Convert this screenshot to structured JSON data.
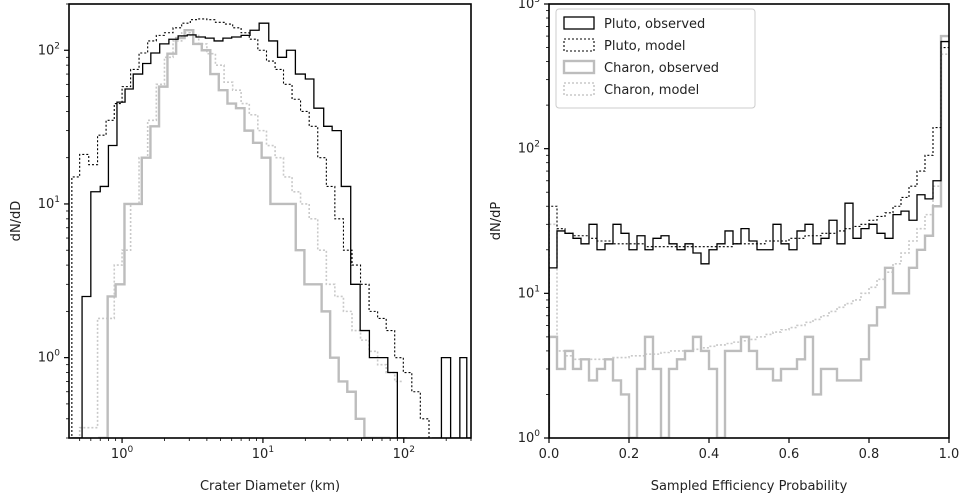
{
  "chart_data": [
    {
      "type": "line",
      "step": true,
      "xscale": "log",
      "yscale": "log",
      "xlim": [
        0.42,
        300
      ],
      "ylim": [
        0.3,
        200
      ],
      "xlabel": "Crater Diameter (km)",
      "ylabel": "dN/dD",
      "xticks": [
        {
          "value": 1,
          "base": "10",
          "exp": "0"
        },
        {
          "value": 10,
          "base": "10",
          "exp": "1"
        },
        {
          "value": 100,
          "base": "10",
          "exp": "2"
        }
      ],
      "yticks": [
        {
          "value": 1,
          "base": "10",
          "exp": "0"
        },
        {
          "value": 10,
          "base": "10",
          "exp": "1"
        },
        {
          "value": 100,
          "base": "10",
          "exp": "2"
        }
      ],
      "series": [
        {
          "key": "pluto_obs",
          "color": "#000000",
          "width": 1.3,
          "dash": "",
          "x": [
            0.44,
            0.52,
            0.6,
            0.7,
            0.8,
            0.92,
            1.05,
            1.2,
            1.4,
            1.6,
            1.85,
            2.15,
            2.5,
            2.9,
            3.35,
            3.9,
            4.5,
            5.2,
            6.0,
            7.0,
            8.1,
            9.4,
            11,
            12.7,
            14.7,
            17,
            20,
            23,
            27,
            31,
            36,
            42,
            49,
            57,
            66,
            77,
            90
          ],
          "y": [
            0.3,
            2.5,
            12,
            13,
            24,
            46,
            56,
            70,
            82,
            96,
            110,
            118,
            124,
            126,
            122,
            120,
            115,
            120,
            122,
            125,
            135,
            150,
            115,
            90,
            100,
            70,
            65,
            42,
            32,
            30,
            13,
            3,
            1.5,
            1,
            1,
            0.8,
            0.3
          ]
        },
        {
          "key": "pluto_obs_tail",
          "color": "#000000",
          "width": 1.3,
          "dash": "",
          "x": [
            160,
            185,
            215,
            250,
            280
          ],
          "y": [
            0.3,
            1,
            0.3,
            1,
            0.3
          ]
        },
        {
          "key": "pluto_model",
          "color": "#000000",
          "width": 1.1,
          "dash": "2,2",
          "x": [
            0.44,
            0.5,
            0.58,
            0.67,
            0.77,
            0.88,
            1.0,
            1.15,
            1.32,
            1.52,
            1.75,
            2.0,
            2.3,
            2.65,
            3.05,
            3.5,
            4.0,
            4.6,
            5.3,
            6.1,
            7.0,
            8.0,
            9.2,
            10.6,
            12.2,
            14.0,
            16.1,
            18.5,
            21.3,
            24.5,
            28.2,
            32.4,
            37.3,
            42.9,
            49.3,
            56.7,
            65.2,
            75,
            86.2,
            99.2,
            114,
            131,
            151,
            173,
            200,
            230,
            265
          ],
          "y": [
            15,
            21,
            18,
            28,
            35,
            45,
            58,
            75,
            96,
            115,
            125,
            130,
            140,
            150,
            158,
            160,
            158,
            152,
            148,
            140,
            130,
            118,
            100,
            85,
            75,
            60,
            48,
            40,
            32,
            20,
            13,
            8,
            5,
            4,
            3,
            2,
            1.8,
            1.5,
            1,
            0.8,
            0.6,
            0.4,
            0.3,
            0.3,
            0.3,
            0.3,
            0.3
          ]
        },
        {
          "key": "charon_obs",
          "color": "#bdbdbd",
          "width": 2.4,
          "dash": "",
          "x": [
            0.69,
            0.79,
            0.9,
            1.04,
            1.2,
            1.38,
            1.59,
            1.83,
            2.1,
            2.42,
            2.78,
            3.2,
            3.68,
            4.23,
            4.86,
            5.6,
            6.44,
            7.4,
            8.51,
            9.79,
            11.3,
            13,
            14.9,
            17.1,
            19.7,
            22.7,
            26.1,
            30,
            34.5,
            39.7,
            45.6,
            52.5,
            60.3,
            69.4
          ],
          "y": [
            0.3,
            2.5,
            3,
            10,
            10,
            20,
            32,
            58,
            95,
            120,
            135,
            110,
            100,
            70,
            55,
            45,
            42,
            30,
            25,
            20,
            10,
            10,
            10,
            5,
            3,
            3,
            2,
            1,
            0.7,
            0.6,
            0.4,
            0.3,
            0.3,
            0.3
          ]
        },
        {
          "key": "charon_model",
          "color": "#c9c9c9",
          "width": 1.6,
          "dash": "2,2",
          "x": [
            0.5,
            0.58,
            0.67,
            0.77,
            0.88,
            1.0,
            1.15,
            1.32,
            1.52,
            1.75,
            2.0,
            2.3,
            2.65,
            3.05,
            3.5,
            4.0,
            4.6,
            5.3,
            6.1,
            7.0,
            8.0,
            9.2,
            10.6,
            12.2,
            14.0,
            16.1,
            18.5,
            21.3,
            24.5,
            28.2,
            32.4,
            37.3,
            42.9,
            49.3,
            56.7,
            65.2,
            75,
            86.2
          ],
          "y": [
            0.35,
            0.35,
            1.8,
            1.8,
            4,
            5,
            10,
            20,
            35,
            60,
            90,
            115,
            130,
            125,
            110,
            95,
            80,
            62,
            55,
            45,
            38,
            30,
            24,
            20,
            15,
            12,
            10,
            8,
            5,
            3,
            2.5,
            2,
            1.5,
            1.3,
            1.1,
            0.9,
            0.8,
            0.7
          ]
        }
      ]
    },
    {
      "type": "line",
      "step": true,
      "xscale": "linear",
      "yscale": "log",
      "xlim": [
        0,
        1
      ],
      "ylim": [
        1,
        1000
      ],
      "xlabel": "Sampled Efficiency Probability",
      "ylabel": "dN/dP",
      "xticks": [
        {
          "value": 0,
          "label": "0.0"
        },
        {
          "value": 0.2,
          "label": "0.2"
        },
        {
          "value": 0.4,
          "label": "0.4"
        },
        {
          "value": 0.6,
          "label": "0.6"
        },
        {
          "value": 0.8,
          "label": "0.8"
        },
        {
          "value": 1,
          "label": "1.0"
        }
      ],
      "yticks": [
        {
          "value": 1,
          "base": "10",
          "exp": "0"
        },
        {
          "value": 10,
          "base": "10",
          "exp": "1"
        },
        {
          "value": 100,
          "base": "10",
          "exp": "2"
        },
        {
          "value": 1000,
          "base": "10",
          "exp": "3"
        }
      ],
      "legend": {
        "position": "upper-left",
        "entries": [
          {
            "label": "Pluto, observed",
            "key": "pluto_obs"
          },
          {
            "label": "Pluto, model",
            "key": "pluto_model"
          },
          {
            "label": "Charon, observed",
            "key": "charon_obs"
          },
          {
            "label": "Charon, model",
            "key": "charon_model"
          }
        ]
      },
      "series": [
        {
          "key": "pluto_obs",
          "color": "#000000",
          "width": 1.3,
          "dash": "",
          "x": [
            0,
            0.02,
            0.04,
            0.06,
            0.08,
            0.1,
            0.12,
            0.14,
            0.16,
            0.18,
            0.2,
            0.22,
            0.24,
            0.26,
            0.28,
            0.3,
            0.32,
            0.34,
            0.36,
            0.38,
            0.4,
            0.42,
            0.44,
            0.46,
            0.48,
            0.5,
            0.52,
            0.54,
            0.56,
            0.58,
            0.6,
            0.62,
            0.64,
            0.66,
            0.68,
            0.7,
            0.72,
            0.74,
            0.76,
            0.78,
            0.8,
            0.82,
            0.84,
            0.86,
            0.88,
            0.9,
            0.92,
            0.94,
            0.96,
            0.98
          ],
          "y": [
            15,
            27,
            26,
            24,
            22,
            30,
            20,
            22,
            30,
            26,
            20,
            25,
            20,
            24,
            25,
            22,
            20,
            22,
            19,
            16,
            20,
            22,
            27,
            22,
            28,
            23,
            20,
            20,
            30,
            22,
            20,
            27,
            30,
            22,
            24,
            32,
            22,
            42,
            24,
            28,
            30,
            26,
            24,
            35,
            37,
            32,
            48,
            45,
            60,
            550
          ]
        },
        {
          "key": "pluto_model",
          "color": "#000000",
          "width": 1.1,
          "dash": "2,2",
          "x": [
            0,
            0.02,
            0.04,
            0.06,
            0.08,
            0.1,
            0.12,
            0.14,
            0.16,
            0.18,
            0.2,
            0.22,
            0.24,
            0.26,
            0.28,
            0.3,
            0.32,
            0.34,
            0.36,
            0.38,
            0.4,
            0.42,
            0.44,
            0.46,
            0.48,
            0.5,
            0.52,
            0.54,
            0.56,
            0.58,
            0.6,
            0.62,
            0.64,
            0.66,
            0.68,
            0.7,
            0.72,
            0.74,
            0.76,
            0.78,
            0.8,
            0.82,
            0.84,
            0.86,
            0.88,
            0.9,
            0.92,
            0.94,
            0.96,
            0.98
          ],
          "y": [
            40,
            28,
            26,
            25,
            25,
            24,
            23,
            23,
            22,
            22,
            22,
            22,
            21,
            21,
            21,
            21,
            21,
            21,
            21,
            21,
            21,
            21,
            21,
            22,
            22,
            22,
            22,
            23,
            23,
            23,
            24,
            24,
            25,
            25,
            26,
            26,
            27,
            28,
            29,
            30,
            32,
            34,
            36,
            40,
            46,
            55,
            70,
            90,
            140,
            500
          ]
        },
        {
          "key": "charon_obs",
          "color": "#bdbdbd",
          "width": 2.4,
          "dash": "",
          "x": [
            0,
            0.02,
            0.04,
            0.06,
            0.08,
            0.1,
            0.12,
            0.14,
            0.16,
            0.18,
            0.2,
            0.22,
            0.24,
            0.26,
            0.28,
            0.3,
            0.32,
            0.34,
            0.36,
            0.38,
            0.4,
            0.42,
            0.44,
            0.46,
            0.48,
            0.5,
            0.52,
            0.54,
            0.56,
            0.58,
            0.6,
            0.62,
            0.64,
            0.66,
            0.68,
            0.7,
            0.72,
            0.74,
            0.76,
            0.78,
            0.8,
            0.82,
            0.84,
            0.86,
            0.88,
            0.9,
            0.92,
            0.94,
            0.96,
            0.98
          ],
          "y": [
            5,
            3,
            4,
            3,
            3.5,
            2.5,
            3,
            3.5,
            2.5,
            2,
            1,
            3,
            5,
            3,
            1,
            3,
            3.5,
            4,
            5,
            4,
            3,
            1,
            4,
            4,
            5,
            4,
            3,
            3,
            2.5,
            3,
            3,
            3.5,
            5,
            2,
            3,
            3,
            2.5,
            2.5,
            2.5,
            3.5,
            6,
            8,
            15,
            10,
            10,
            15,
            20,
            25,
            40,
            600
          ]
        },
        {
          "key": "charon_model",
          "color": "#c9c9c9",
          "width": 1.6,
          "dash": "2,2",
          "x": [
            0,
            0.02,
            0.04,
            0.06,
            0.08,
            0.1,
            0.12,
            0.14,
            0.16,
            0.18,
            0.2,
            0.22,
            0.24,
            0.26,
            0.28,
            0.3,
            0.32,
            0.34,
            0.36,
            0.38,
            0.4,
            0.42,
            0.44,
            0.46,
            0.48,
            0.5,
            0.52,
            0.54,
            0.56,
            0.58,
            0.6,
            0.62,
            0.64,
            0.66,
            0.68,
            0.7,
            0.72,
            0.74,
            0.76,
            0.78,
            0.8,
            0.82,
            0.84,
            0.86,
            0.88,
            0.9,
            0.92,
            0.94,
            0.96,
            0.98
          ],
          "y": [
            30,
            4,
            3.7,
            3.5,
            3.5,
            3.5,
            3.5,
            3.5,
            3.6,
            3.6,
            3.7,
            3.7,
            3.8,
            3.8,
            3.9,
            4,
            4,
            4,
            4.1,
            4.2,
            4.3,
            4.4,
            4.5,
            4.6,
            4.7,
            4.8,
            5,
            5.2,
            5.4,
            5.6,
            5.8,
            6,
            6.3,
            6.6,
            7,
            7.5,
            8,
            8.5,
            9,
            10,
            11,
            12.5,
            14,
            16,
            19,
            23,
            28,
            35,
            55,
            450
          ]
        }
      ]
    }
  ]
}
